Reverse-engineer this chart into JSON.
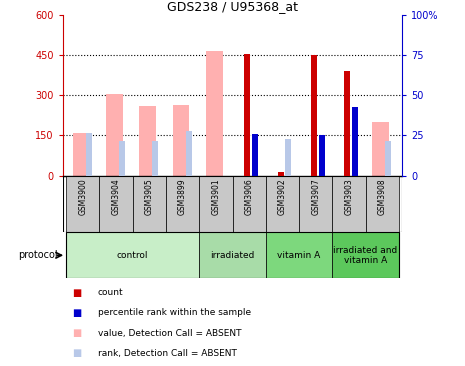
{
  "title": "GDS238 / U95368_at",
  "samples": [
    "GSM3900",
    "GSM3904",
    "GSM3905",
    "GSM3899",
    "GSM3901",
    "GSM3906",
    "GSM3902",
    "GSM3907",
    "GSM3903",
    "GSM3908"
  ],
  "groups": [
    {
      "label": "control",
      "indices": [
        0,
        1,
        2,
        3
      ],
      "color": "#c8eec8"
    },
    {
      "label": "irradiated",
      "indices": [
        4,
        5
      ],
      "color": "#a8dca8"
    },
    {
      "label": "vitamin A",
      "indices": [
        6,
        7
      ],
      "color": "#7dd87d"
    },
    {
      "label": "irradiated and\nvitamin A",
      "indices": [
        8,
        9
      ],
      "color": "#5cc85c"
    }
  ],
  "pink_bars": [
    160,
    305,
    260,
    265,
    465,
    0,
    0,
    0,
    0,
    200
  ],
  "light_blue_bars": [
    160,
    130,
    130,
    165,
    0,
    155,
    135,
    150,
    0,
    130
  ],
  "red_bars": [
    0,
    0,
    0,
    0,
    0,
    455,
    15,
    450,
    390,
    0
  ],
  "blue_bars": [
    0,
    0,
    0,
    0,
    0,
    155,
    0,
    150,
    255,
    0
  ],
  "ylim_left": [
    0,
    600
  ],
  "ylim_right": [
    0,
    100
  ],
  "yticks_left": [
    0,
    150,
    300,
    450,
    600
  ],
  "yticks_right": [
    0,
    25,
    50,
    75,
    100
  ],
  "ytick_labels_left": [
    "0",
    "150",
    "300",
    "450",
    "600"
  ],
  "ytick_labels_right": [
    "0",
    "25",
    "50",
    "75",
    "100%"
  ],
  "hlines": [
    150,
    300,
    450
  ],
  "left_color": "#cc0000",
  "right_color": "#0000cc",
  "bg_color": "#ffffff",
  "label_bg": "#c8c8c8",
  "legend_colors": [
    "#cc0000",
    "#0000cc",
    "#ffb0b0",
    "#b8c8e8"
  ],
  "legend_labels": [
    "count",
    "percentile rank within the sample",
    "value, Detection Call = ABSENT",
    "rank, Detection Call = ABSENT"
  ]
}
